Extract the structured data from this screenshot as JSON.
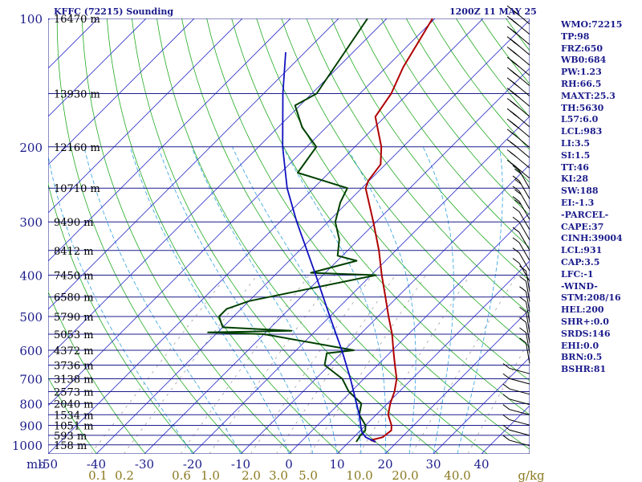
{
  "header": {
    "title": "KFFC (72215) Sounding",
    "time": "1200Z 11 MAY 25"
  },
  "colors": {
    "isobar": "#1c1c8c",
    "isotherm": "#3a3ad0",
    "dry_adiabat": "#22aa22",
    "moist_adiabat": "#2fa0e0",
    "mixing_ratio": "#a0a0a0",
    "temperature": "#b00000",
    "dewpoint": "#004000",
    "parcel": "#1010c0",
    "wind_barb": "#000000",
    "text": "#1c1c8c"
  },
  "stats": [
    "WMO:72215",
    "TP:98",
    "FRZ:650",
    "WB0:684",
    "PW:1.23",
    "RH:66.5",
    "MAXT:25.3",
    "TH:5630",
    "L57:6.0",
    "LCL:983",
    "LI:3.5",
    "SI:1.5",
    "TT:46",
    "KI:28",
    "SW:188",
    "EI:-1.3",
    "-PARCEL-",
    "CAPE:37",
    "CINH:39004",
    "LCL:931",
    "CAP:3.5",
    "LFC:-1",
    "-WIND-",
    "STM:208/16",
    "HEL:200",
    "SHR+:0.0",
    "SRDS:146",
    "EHI:0.0",
    "BRN:0.5",
    "BSHR:81"
  ],
  "chart_data": {
    "type": "line",
    "title": "KFFC (72215) Sounding 1200Z 11 MAY 25",
    "y_scale": "log",
    "ylim": [
      1050,
      100
    ],
    "xlim": [
      -50,
      50
    ],
    "pressure_ticks": [
      "100",
      "200",
      "300",
      "400",
      "500",
      "600",
      "700",
      "800",
      "900",
      "1000"
    ],
    "pressure_tick_values": [
      100,
      200,
      300,
      400,
      500,
      600,
      700,
      800,
      900,
      1000
    ],
    "pressure_axis_unit": "mb",
    "temp_ticks": [
      "-50",
      "-40",
      "-30",
      "-20",
      "-10",
      "0",
      "10",
      "20",
      "30",
      "40"
    ],
    "temp_tick_values": [
      -50,
      -40,
      -30,
      -20,
      -10,
      0,
      10,
      20,
      30,
      40
    ],
    "mixing_ratio_ticks": [
      "0.1",
      "0.2",
      "0.6",
      "1.0",
      "2.0",
      "3.0",
      "5.0",
      "10.0",
      "20.0",
      "40.0",
      "g/kg"
    ],
    "mixing_ratio_tick_values": [
      0.1,
      0.2,
      0.6,
      1.0,
      2.0,
      3.0,
      5.0,
      10.0,
      20.0,
      40.0
    ],
    "height_labels": [
      {
        "label": "16470 m",
        "p": 100
      },
      {
        "label": "13930 m",
        "p": 150
      },
      {
        "label": "12160 m",
        "p": 200
      },
      {
        "label": "10710 m",
        "p": 250
      },
      {
        "label": "9490 m",
        "p": 300
      },
      {
        "label": "8412 m",
        "p": 350
      },
      {
        "label": "7450 m",
        "p": 400
      },
      {
        "label": "6580 m",
        "p": 450
      },
      {
        "label": "5790 m",
        "p": 500
      },
      {
        "label": "5053 m",
        "p": 550
      },
      {
        "label": "4372 m",
        "p": 600
      },
      {
        "label": "3736 m",
        "p": 650
      },
      {
        "label": "3138 m",
        "p": 700
      },
      {
        "label": "2573 m",
        "p": 750
      },
      {
        "label": "2040 m",
        "p": 800
      },
      {
        "label": "1534 m",
        "p": 850
      },
      {
        "label": "1051 m",
        "p": 900
      },
      {
        "label": "593 m",
        "p": 950
      },
      {
        "label": "158 m",
        "p": 1000
      }
    ],
    "series": [
      {
        "name": "Temperature",
        "points": [
          {
            "p": 984,
            "t": 15.5
          },
          {
            "p": 975,
            "t": 14.2
          },
          {
            "p": 960,
            "t": 16.0
          },
          {
            "p": 925,
            "t": 16.4
          },
          {
            "p": 900,
            "t": 15.4
          },
          {
            "p": 850,
            "t": 12.5
          },
          {
            "p": 800,
            "t": 10.6
          },
          {
            "p": 750,
            "t": 9.0
          },
          {
            "p": 700,
            "t": 6.8
          },
          {
            "p": 650,
            "t": 3.6
          },
          {
            "p": 600,
            "t": 0.2
          },
          {
            "p": 550,
            "t": -3.4
          },
          {
            "p": 500,
            "t": -7.8
          },
          {
            "p": 450,
            "t": -12.5
          },
          {
            "p": 400,
            "t": -17.8
          },
          {
            "p": 350,
            "t": -23.5
          },
          {
            "p": 300,
            "t": -30.6
          },
          {
            "p": 250,
            "t": -39.2
          },
          {
            "p": 240,
            "t": -40.2
          },
          {
            "p": 220,
            "t": -41.0
          },
          {
            "p": 200,
            "t": -44.5
          },
          {
            "p": 170,
            "t": -52.0
          },
          {
            "p": 150,
            "t": -53.5
          },
          {
            "p": 130,
            "t": -56.5
          },
          {
            "p": 100,
            "t": -60.5
          }
        ]
      },
      {
        "name": "Dewpoint",
        "points": [
          {
            "p": 984,
            "t": 11.5
          },
          {
            "p": 950,
            "t": 11.0
          },
          {
            "p": 925,
            "t": 11.0
          },
          {
            "p": 900,
            "t": 10.0
          },
          {
            "p": 850,
            "t": 6.5
          },
          {
            "p": 800,
            "t": 4.6
          },
          {
            "p": 750,
            "t": -0.5
          },
          {
            "p": 700,
            "t": -4.5
          },
          {
            "p": 650,
            "t": -11.0
          },
          {
            "p": 610,
            "t": -13.0
          },
          {
            "p": 600,
            "t": -8.0
          },
          {
            "p": 550,
            "t": -30.0
          },
          {
            "p": 545,
            "t": -42.0
          },
          {
            "p": 540,
            "t": -25.0
          },
          {
            "p": 530,
            "t": -40.0
          },
          {
            "p": 500,
            "t": -43.0
          },
          {
            "p": 480,
            "t": -43.0
          },
          {
            "p": 460,
            "t": -40.0
          },
          {
            "p": 400,
            "t": -19.0
          },
          {
            "p": 395,
            "t": -33.0
          },
          {
            "p": 370,
            "t": -26.0
          },
          {
            "p": 360,
            "t": -31.0
          },
          {
            "p": 330,
            "t": -34.0
          },
          {
            "p": 300,
            "t": -38.5
          },
          {
            "p": 270,
            "t": -41.5
          },
          {
            "p": 250,
            "t": -43.0
          },
          {
            "p": 230,
            "t": -56.5
          },
          {
            "p": 200,
            "t": -58.0
          },
          {
            "p": 180,
            "t": -65.0
          },
          {
            "p": 160,
            "t": -71.0
          },
          {
            "p": 150,
            "t": -69.0
          },
          {
            "p": 100,
            "t": -74.0
          }
        ]
      },
      {
        "name": "Parcel",
        "points": [
          {
            "p": 984,
            "t": 15.5
          },
          {
            "p": 960,
            "t": 12.5
          },
          {
            "p": 931,
            "t": 10.5
          },
          {
            "p": 900,
            "t": 9.0
          },
          {
            "p": 850,
            "t": 6.5
          },
          {
            "p": 800,
            "t": 3.6
          },
          {
            "p": 700,
            "t": -2.8
          },
          {
            "p": 600,
            "t": -10.5
          },
          {
            "p": 500,
            "t": -20.0
          },
          {
            "p": 400,
            "t": -31.5
          },
          {
            "p": 300,
            "t": -46.5
          },
          {
            "p": 250,
            "t": -55.5
          },
          {
            "p": 200,
            "t": -65.0
          },
          {
            "p": 150,
            "t": -76.0
          },
          {
            "p": 120,
            "t": -84.0
          }
        ]
      }
    ]
  }
}
